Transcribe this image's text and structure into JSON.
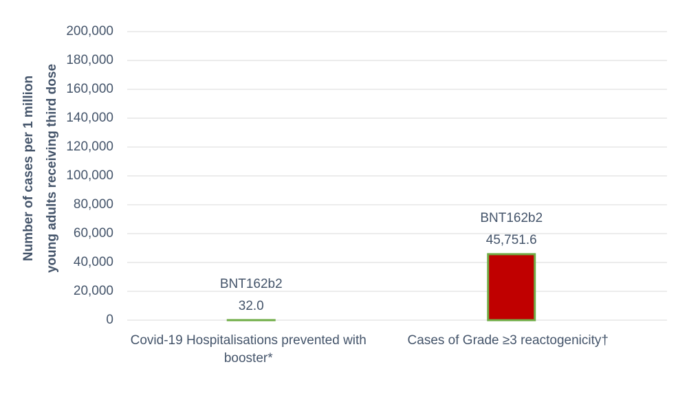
{
  "chart_data": {
    "type": "bar",
    "ylabel": [
      "Number of cases per 1 million",
      "young adults receiving third dose"
    ],
    "categories": [
      "Covid-19 Hospitalisations prevented with booster*",
      "Cases of Grade ≥3 reactogenicity†"
    ],
    "values": [
      32.0,
      45751.6
    ],
    "value_labels": [
      "32.0",
      "45,751.6"
    ],
    "bar_labels": [
      "BNT162b2",
      "BNT162b2"
    ],
    "color": "#c00000",
    "edgecolor": "#70ad47",
    "ylim": [
      0,
      200000
    ],
    "yticks": [
      0,
      {
        "value": 20000,
        "label": "20,000"
      },
      {
        "value": 40000,
        "label": "40,000"
      },
      {
        "value": 60000,
        "label": "60,000"
      },
      {
        "value": 80000,
        "label": "80,000"
      },
      {
        "value": 100000,
        "label": "100,000"
      },
      {
        "value": 120000,
        "label": "120,000"
      },
      {
        "value": 140000,
        "label": "140,000"
      },
      {
        "value": 160000,
        "label": "160,000"
      },
      {
        "value": 180000,
        "label": "180,000"
      },
      {
        "value": 200000,
        "label": "200,000"
      }
    ],
    "grid": true
  }
}
